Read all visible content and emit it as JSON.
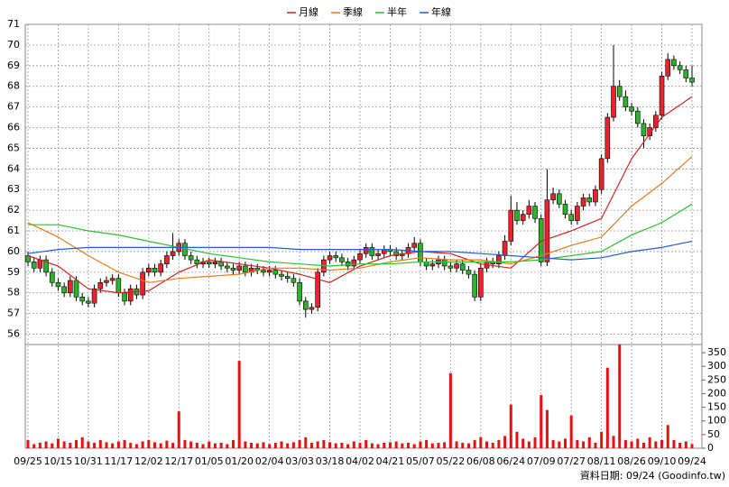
{
  "chart_data": {
    "type": "candlestick",
    "footer": "資料日期: 09/24 (Goodinfo.tw)",
    "categories": [
      "09/25",
      null,
      null,
      null,
      null,
      "10/15",
      null,
      null,
      null,
      null,
      "10/31",
      null,
      null,
      null,
      null,
      "11/17",
      null,
      null,
      null,
      null,
      "12/02",
      null,
      null,
      null,
      null,
      "12/17",
      null,
      null,
      null,
      null,
      "01/05",
      null,
      null,
      null,
      null,
      "01/20",
      null,
      null,
      null,
      null,
      "02/04",
      null,
      null,
      null,
      null,
      "03/03",
      null,
      null,
      null,
      null,
      "03/18",
      null,
      null,
      null,
      null,
      "04/02",
      null,
      null,
      null,
      null,
      "04/21",
      null,
      null,
      null,
      null,
      "05/07",
      null,
      null,
      null,
      null,
      "05/22",
      null,
      null,
      null,
      null,
      "06/08",
      null,
      null,
      null,
      null,
      "06/24",
      null,
      null,
      null,
      null,
      "07/09",
      null,
      null,
      null,
      null,
      "07/27",
      null,
      null,
      null,
      null,
      "08/11",
      null,
      null,
      null,
      null,
      "08/26",
      null,
      null,
      null,
      null,
      "09/10",
      null,
      null,
      null,
      null,
      "09/24"
    ],
    "ohlc": [
      [
        59.8,
        60.0,
        59.3,
        59.5
      ],
      [
        59.5,
        59.7,
        59.0,
        59.2
      ],
      [
        59.2,
        59.8,
        59.0,
        59.6
      ],
      [
        59.6,
        59.8,
        58.8,
        59.0
      ],
      [
        59.0,
        59.2,
        58.3,
        58.5
      ],
      [
        58.5,
        58.7,
        58.1,
        58.3
      ],
      [
        58.3,
        58.5,
        57.8,
        58.0
      ],
      [
        58.0,
        58.8,
        57.8,
        58.6
      ],
      [
        58.6,
        58.8,
        57.6,
        57.8
      ],
      [
        57.8,
        58.0,
        57.4,
        57.6
      ],
      [
        57.6,
        57.8,
        57.3,
        57.5
      ],
      [
        57.5,
        58.4,
        57.3,
        58.2
      ],
      [
        58.2,
        58.7,
        58.0,
        58.5
      ],
      [
        58.5,
        58.8,
        58.3,
        58.6
      ],
      [
        58.6,
        58.9,
        58.4,
        58.7
      ],
      [
        58.7,
        58.9,
        57.8,
        58.0
      ],
      [
        58.0,
        58.2,
        57.4,
        57.6
      ],
      [
        57.6,
        58.4,
        57.4,
        58.2
      ],
      [
        58.2,
        58.4,
        57.7,
        57.9
      ],
      [
        57.9,
        59.2,
        57.7,
        59.0
      ],
      [
        59.0,
        59.4,
        58.8,
        59.2
      ],
      [
        59.2,
        59.4,
        58.8,
        59.0
      ],
      [
        59.0,
        59.6,
        58.8,
        59.4
      ],
      [
        59.4,
        60.0,
        59.2,
        59.8
      ],
      [
        59.8,
        60.9,
        59.6,
        60.0
      ],
      [
        60.0,
        60.6,
        59.8,
        60.4
      ],
      [
        60.4,
        60.6,
        59.6,
        59.8
      ],
      [
        59.8,
        60.0,
        59.4,
        59.6
      ],
      [
        59.6,
        59.8,
        59.2,
        59.4
      ],
      [
        59.4,
        59.7,
        59.2,
        59.5
      ],
      [
        59.5,
        59.7,
        59.2,
        59.4
      ],
      [
        59.4,
        59.7,
        59.2,
        59.5
      ],
      [
        59.5,
        59.7,
        59.1,
        59.3
      ],
      [
        59.3,
        59.5,
        59.0,
        59.2
      ],
      [
        59.2,
        59.4,
        58.9,
        59.1
      ],
      [
        59.1,
        59.5,
        58.9,
        59.3
      ],
      [
        59.3,
        59.5,
        58.8,
        59.0
      ],
      [
        59.0,
        59.4,
        58.8,
        59.2
      ],
      [
        59.2,
        59.4,
        58.9,
        59.1
      ],
      [
        59.1,
        59.3,
        58.8,
        59.0
      ],
      [
        59.0,
        59.3,
        58.8,
        59.1
      ],
      [
        59.1,
        59.3,
        58.7,
        58.9
      ],
      [
        58.9,
        59.1,
        58.6,
        58.8
      ],
      [
        58.8,
        59.0,
        58.5,
        58.7
      ],
      [
        58.7,
        58.9,
        58.3,
        58.5
      ],
      [
        58.5,
        58.7,
        57.4,
        57.6
      ],
      [
        57.6,
        57.8,
        56.8,
        57.2
      ],
      [
        57.2,
        57.5,
        57.0,
        57.3
      ],
      [
        57.3,
        59.2,
        57.1,
        59.0
      ],
      [
        59.0,
        59.8,
        58.8,
        59.6
      ],
      [
        59.6,
        60.0,
        59.4,
        59.8
      ],
      [
        59.8,
        60.0,
        59.5,
        59.7
      ],
      [
        59.7,
        59.9,
        59.3,
        59.5
      ],
      [
        59.5,
        59.7,
        59.1,
        59.3
      ],
      [
        59.3,
        59.8,
        59.1,
        59.6
      ],
      [
        59.6,
        60.1,
        59.4,
        59.9
      ],
      [
        59.9,
        60.4,
        59.7,
        60.2
      ],
      [
        60.2,
        60.4,
        59.6,
        59.8
      ],
      [
        59.8,
        60.1,
        59.6,
        59.9
      ],
      [
        59.9,
        60.3,
        59.7,
        60.1
      ],
      [
        60.1,
        60.3,
        59.8,
        60.0
      ],
      [
        60.0,
        60.2,
        59.6,
        59.8
      ],
      [
        59.8,
        60.1,
        59.6,
        59.9
      ],
      [
        59.9,
        60.4,
        59.7,
        60.2
      ],
      [
        60.2,
        60.7,
        60.0,
        60.4
      ],
      [
        60.4,
        60.6,
        59.3,
        59.5
      ],
      [
        59.5,
        59.7,
        59.1,
        59.3
      ],
      [
        59.3,
        59.6,
        59.1,
        59.4
      ],
      [
        59.4,
        59.8,
        59.2,
        59.6
      ],
      [
        59.6,
        59.8,
        59.1,
        59.3
      ],
      [
        59.3,
        59.5,
        59.0,
        59.2
      ],
      [
        59.2,
        59.6,
        59.0,
        59.4
      ],
      [
        59.4,
        59.6,
        58.9,
        59.1
      ],
      [
        59.1,
        59.3,
        58.7,
        58.9
      ],
      [
        58.9,
        59.1,
        57.6,
        57.8
      ],
      [
        57.8,
        59.4,
        57.6,
        59.2
      ],
      [
        59.2,
        59.7,
        59.0,
        59.5
      ],
      [
        59.5,
        59.7,
        59.2,
        59.4
      ],
      [
        59.4,
        60.0,
        59.2,
        59.8
      ],
      [
        59.8,
        60.8,
        59.6,
        60.5
      ],
      [
        60.5,
        62.7,
        60.3,
        62.0
      ],
      [
        62.0,
        62.4,
        61.3,
        61.5
      ],
      [
        61.5,
        62.0,
        61.3,
        61.8
      ],
      [
        61.8,
        62.5,
        61.6,
        62.2
      ],
      [
        62.2,
        62.4,
        61.4,
        61.6
      ],
      [
        61.6,
        61.8,
        59.3,
        59.5
      ],
      [
        59.5,
        64.0,
        59.3,
        62.5
      ],
      [
        62.5,
        63.1,
        62.3,
        62.8
      ],
      [
        62.8,
        63.0,
        62.1,
        62.3
      ],
      [
        62.3,
        62.5,
        61.6,
        61.8
      ],
      [
        61.8,
        62.0,
        61.3,
        61.5
      ],
      [
        61.5,
        62.4,
        61.3,
        62.2
      ],
      [
        62.2,
        62.8,
        62.0,
        62.6
      ],
      [
        62.6,
        62.8,
        62.2,
        62.4
      ],
      [
        62.4,
        63.2,
        62.2,
        63.0
      ],
      [
        63.0,
        64.7,
        62.8,
        64.5
      ],
      [
        64.5,
        66.7,
        64.3,
        66.5
      ],
      [
        66.5,
        70.0,
        66.3,
        68.0
      ],
      [
        68.0,
        68.3,
        67.3,
        67.5
      ],
      [
        67.5,
        67.8,
        66.8,
        67.0
      ],
      [
        67.0,
        67.2,
        66.6,
        66.8
      ],
      [
        66.8,
        67.0,
        66.0,
        66.2
      ],
      [
        66.2,
        66.4,
        65.0,
        65.6
      ],
      [
        65.6,
        66.2,
        65.4,
        66.0
      ],
      [
        66.0,
        66.8,
        65.8,
        66.6
      ],
      [
        66.6,
        68.7,
        66.4,
        68.5
      ],
      [
        68.5,
        69.6,
        68.3,
        69.3
      ],
      [
        69.3,
        69.5,
        68.8,
        69.0
      ],
      [
        69.0,
        69.2,
        68.6,
        68.8
      ],
      [
        68.8,
        69.0,
        68.2,
        68.4
      ],
      [
        68.4,
        69.0,
        68.0,
        68.2
      ]
    ],
    "volume": [
      30,
      15,
      20,
      25,
      18,
      35,
      25,
      20,
      30,
      40,
      25,
      20,
      30,
      22,
      18,
      25,
      30,
      20,
      15,
      25,
      30,
      22,
      18,
      28,
      20,
      135,
      30,
      25,
      20,
      15,
      25,
      18,
      20,
      15,
      30,
      320,
      25,
      20,
      18,
      22,
      15,
      20,
      25,
      18,
      22,
      30,
      40,
      20,
      25,
      30,
      22,
      18,
      20,
      15,
      25,
      20,
      30,
      18,
      15,
      20,
      22,
      25,
      18,
      20,
      15,
      25,
      30,
      18,
      20,
      22,
      275,
      25,
      20,
      18,
      30,
      40,
      25,
      20,
      30,
      45,
      160,
      60,
      35,
      25,
      40,
      195,
      140,
      30,
      25,
      35,
      120,
      30,
      25,
      40,
      20,
      60,
      295,
      45,
      380,
      30,
      25,
      35,
      20,
      40,
      25,
      30,
      85,
      30,
      20,
      25,
      15
    ],
    "ylim": [
      55.5,
      71
    ],
    "yticks": [
      56,
      57,
      58,
      59,
      60,
      61,
      62,
      63,
      64,
      65,
      66,
      67,
      68,
      69,
      70,
      71
    ],
    "vlim": [
      0,
      380
    ],
    "vticks": [
      0,
      50,
      100,
      150,
      200,
      250,
      300,
      350
    ],
    "up_color": "#e8232b",
    "down_color": "#2bb32b",
    "volume_color": "#e81010",
    "grid": true,
    "series": [
      {
        "name": "月線",
        "color": "#d42020",
        "x": [
          0,
          5,
          10,
          15,
          20,
          25,
          30,
          35,
          40,
          45,
          50,
          55,
          60,
          65,
          70,
          75,
          80,
          85,
          90,
          95,
          100,
          105,
          110
        ],
        "values": [
          59.8,
          59.3,
          58.2,
          58.0,
          58.1,
          59.0,
          59.6,
          59.4,
          59.2,
          58.9,
          58.5,
          59.3,
          59.8,
          60.0,
          59.9,
          59.4,
          59.2,
          60.5,
          61.0,
          61.6,
          64.5,
          66.5,
          67.5
        ]
      },
      {
        "name": "季線",
        "color": "#e87a20",
        "x": [
          0,
          5,
          10,
          15,
          20,
          25,
          30,
          35,
          40,
          45,
          50,
          55,
          60,
          65,
          70,
          75,
          80,
          85,
          90,
          95,
          100,
          105,
          110
        ],
        "values": [
          61.4,
          60.7,
          59.8,
          59.0,
          58.5,
          58.7,
          58.8,
          58.9,
          59.2,
          59.2,
          59.1,
          59.2,
          59.5,
          59.7,
          59.6,
          59.6,
          59.4,
          59.8,
          60.3,
          60.7,
          62.2,
          63.3,
          64.6
        ]
      },
      {
        "name": "半年",
        "color": "#30c030",
        "x": [
          0,
          5,
          10,
          15,
          20,
          25,
          30,
          35,
          40,
          45,
          50,
          55,
          60,
          65,
          70,
          75,
          80,
          85,
          90,
          95,
          100,
          105,
          110
        ],
        "values": [
          61.3,
          61.3,
          61.0,
          60.8,
          60.5,
          60.2,
          59.9,
          59.7,
          59.5,
          59.4,
          59.3,
          59.4,
          59.4,
          59.5,
          59.5,
          59.5,
          59.5,
          59.6,
          59.8,
          60.0,
          60.8,
          61.4,
          62.3
        ]
      },
      {
        "name": "年線",
        "color": "#2060d0",
        "x": [
          0,
          5,
          10,
          15,
          20,
          25,
          30,
          35,
          40,
          45,
          50,
          55,
          60,
          65,
          70,
          75,
          80,
          85,
          90,
          95,
          100,
          105,
          110
        ],
        "values": [
          59.9,
          60.1,
          60.2,
          60.2,
          60.2,
          60.2,
          60.2,
          60.2,
          60.2,
          60.1,
          60.1,
          60.1,
          60.1,
          60.0,
          60.0,
          59.9,
          59.8,
          59.7,
          59.6,
          59.7,
          60.0,
          60.2,
          60.5
        ]
      }
    ]
  }
}
